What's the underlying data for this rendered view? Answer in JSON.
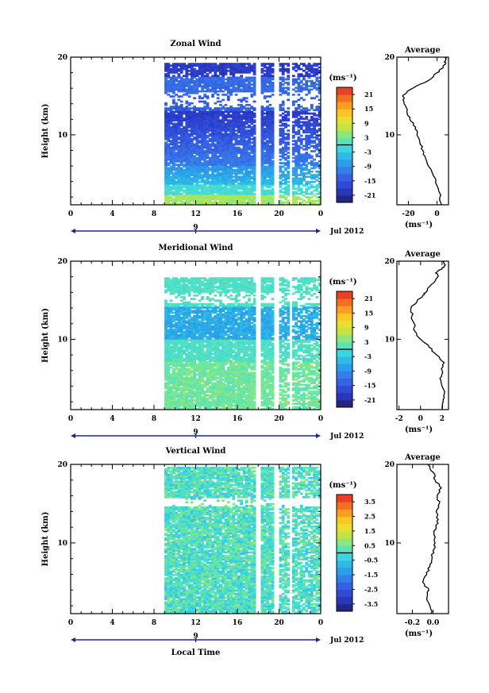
{
  "chart_data": [
    {
      "type": "heatmap",
      "title": "Zonal Wind",
      "ylabel": "Height (km)",
      "xticks": [
        "0",
        "4",
        "8",
        "12",
        "16",
        "20",
        "0"
      ],
      "yticks": [
        "20",
        "10"
      ],
      "xlim": [
        0,
        24
      ],
      "ylim": [
        1,
        20
      ],
      "date_day": "9",
      "date_label": "Jul 2012",
      "colorbar": {
        "unit": "(ms⁻¹)",
        "min": -24,
        "max": 24,
        "tick_labels": [
          "21",
          "15",
          "9",
          "3",
          "-3",
          "-9",
          "-15",
          "-21"
        ],
        "tick_values": [
          21,
          15,
          9,
          3,
          -3,
          -9,
          -15,
          -21
        ]
      },
      "data_region": {
        "x_start": 9.0,
        "x_end": 24.0,
        "y_min": 1.0,
        "y_max": 19.2
      },
      "profile": {
        "title": "Average",
        "xticks": [
          "-20",
          "0"
        ],
        "xtick_values": [
          -20,
          0
        ],
        "xlim": [
          -28,
          8
        ],
        "xlabel": "(ms⁻¹)",
        "y": [
          1.0,
          2,
          3,
          4,
          5,
          6,
          7,
          8,
          9,
          10,
          11,
          12,
          13,
          14,
          15,
          15.5,
          16,
          17,
          18,
          18.5,
          19,
          19.5,
          20
        ],
        "x": [
          3,
          2,
          1,
          -1,
          -3,
          -6,
          -8,
          -10,
          -12,
          -14,
          -15,
          -19,
          -21,
          -23,
          -24,
          -21,
          -17,
          -6,
          0,
          3,
          5,
          6,
          7
        ]
      }
    },
    {
      "type": "heatmap",
      "title": "Meridional Wind",
      "ylabel": "Height (km)",
      "xticks": [
        "0",
        "4",
        "8",
        "12",
        "16",
        "20",
        "0"
      ],
      "yticks": [
        "20",
        "10"
      ],
      "xlim": [
        0,
        24
      ],
      "ylim": [
        1,
        20
      ],
      "date_day": "9",
      "date_label": "Jul 2012",
      "colorbar": {
        "unit": "(ms⁻¹)",
        "min": -24,
        "max": 24,
        "tick_labels": [
          "21",
          "15",
          "9",
          "3",
          "-3",
          "-9",
          "-15",
          "-21"
        ],
        "tick_values": [
          21,
          15,
          9,
          3,
          -3,
          -9,
          -15,
          -21
        ]
      },
      "data_region": {
        "x_start": 9.0,
        "x_end": 24.0,
        "y_min": 1.0,
        "y_max": 17.8
      },
      "profile": {
        "title": "Average",
        "xticks": [
          "-2",
          "0",
          "2"
        ],
        "xtick_values": [
          -2,
          0,
          2
        ],
        "xlim": [
          -2.2,
          2.6
        ],
        "xlabel": "(ms⁻¹)",
        "y": [
          1.0,
          2,
          3,
          4,
          5,
          6,
          7,
          8,
          9,
          10,
          11,
          12,
          13,
          14,
          15,
          15.5,
          16,
          17,
          18,
          18.5,
          19,
          19.5,
          20
        ],
        "x": [
          2.0,
          2.1,
          2.2,
          2.0,
          1.8,
          2.0,
          2.2,
          1.5,
          0.8,
          0.0,
          -0.5,
          -0.6,
          -0.8,
          -0.9,
          -0.3,
          0.2,
          0.5,
          1.0,
          1.6,
          1.4,
          2.0,
          2.3,
          2.2
        ]
      }
    },
    {
      "type": "heatmap",
      "title": "Vertical Wind",
      "ylabel": "Height (km)",
      "xlabel": "Local Time",
      "xticks": [
        "0",
        "4",
        "8",
        "12",
        "16",
        "20",
        "0"
      ],
      "yticks": [
        "20",
        "10"
      ],
      "xlim": [
        0,
        24
      ],
      "ylim": [
        1,
        20
      ],
      "date_day": "9",
      "date_label": "Jul 2012",
      "colorbar": {
        "unit": "(ms⁻¹)",
        "min": -4,
        "max": 4,
        "tick_labels": [
          "3.5",
          "2.5",
          "1.5",
          "0.5",
          "-0.5",
          "-1.5",
          "-2.5",
          "-3.5"
        ],
        "tick_values": [
          3.5,
          2.5,
          1.5,
          0.5,
          -0.5,
          -1.5,
          -2.5,
          -3.5
        ]
      },
      "data_region": {
        "x_start": 9.0,
        "x_end": 24.0,
        "y_min": 1.0,
        "y_max": 19.6
      },
      "profile": {
        "title": "Average",
        "xticks": [
          "-0.2",
          "0.0"
        ],
        "xtick_values": [
          -0.2,
          0.0
        ],
        "xlim": [
          -0.35,
          0.15
        ],
        "xlabel": "(ms⁻¹)",
        "y": [
          1.0,
          2,
          3,
          4,
          5,
          6,
          7,
          8,
          9,
          10,
          11,
          12,
          13,
          14,
          15,
          16,
          17,
          18,
          19,
          20
        ],
        "x": [
          -0.02,
          -0.03,
          -0.06,
          -0.04,
          -0.1,
          -0.06,
          -0.03,
          -0.01,
          0.0,
          0.02,
          0.01,
          0.03,
          0.05,
          0.03,
          0.06,
          0.04,
          0.08,
          0.02,
          0.0,
          -0.05
        ]
      }
    }
  ]
}
